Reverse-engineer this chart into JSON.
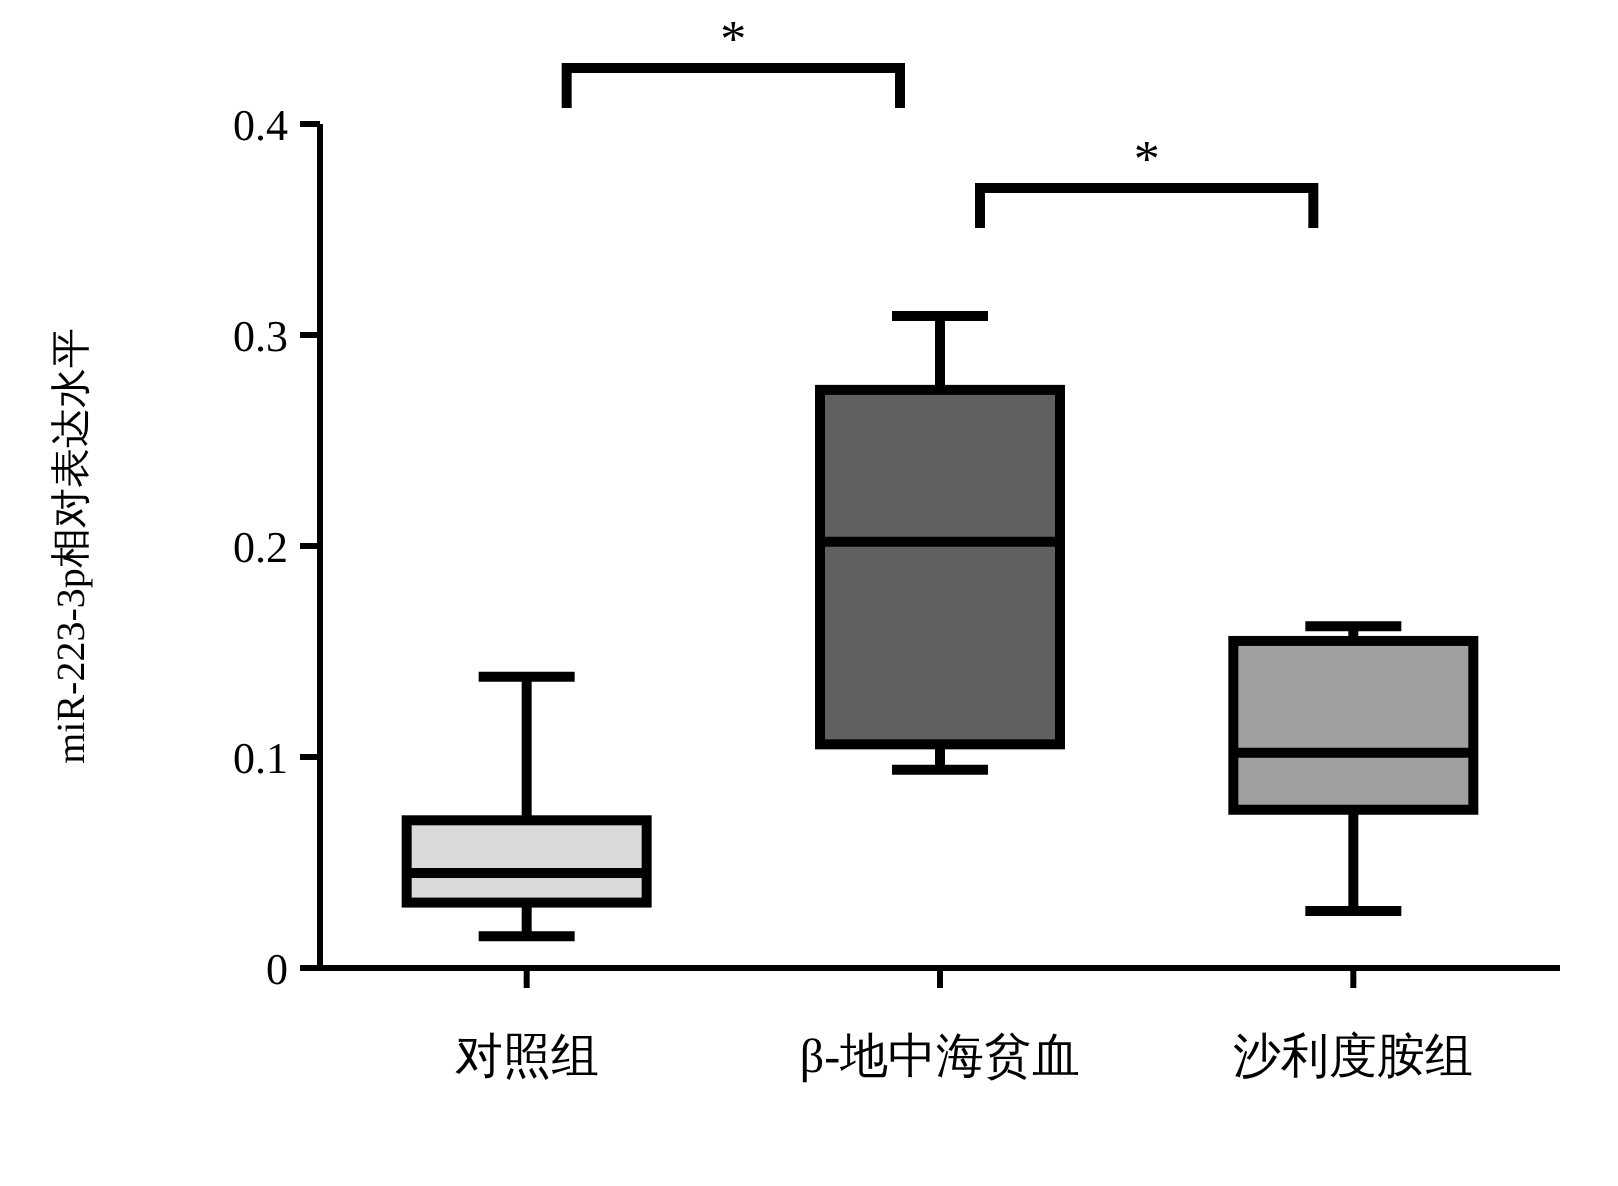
{
  "chart_data": {
    "type": "box",
    "ylabel": "miR-223-3p相对表达水平",
    "categories": [
      "对照组",
      "β-地中海贫血",
      "沙利度胺组"
    ],
    "boxes": [
      {
        "low": 0.015,
        "q1": 0.031,
        "median": 0.045,
        "q3": 0.07,
        "high": 0.138
      },
      {
        "low": 0.094,
        "q1": 0.106,
        "median": 0.202,
        "q3": 0.274,
        "high": 0.309
      },
      {
        "low": 0.027,
        "q1": 0.075,
        "median": 0.102,
        "q3": 0.155,
        "high": 0.162
      }
    ],
    "colors": [
      "#d9d9d9",
      "#606060",
      "#a0a0a0"
    ],
    "ylim": [
      0,
      0.4
    ],
    "yticks": [
      0,
      0.1,
      0.2,
      0.3,
      0.4
    ],
    "annotations": [
      "*",
      "*"
    ]
  }
}
